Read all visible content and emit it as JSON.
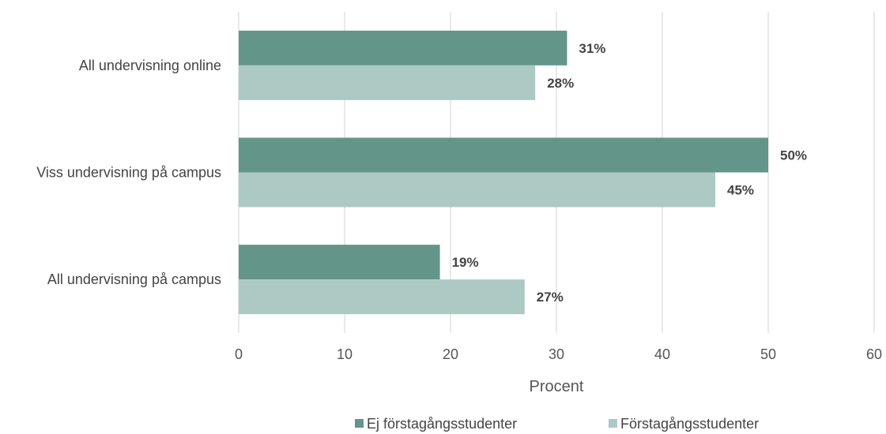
{
  "chart_data": {
    "type": "bar",
    "orientation": "horizontal",
    "categories": [
      "All undervisning online",
      "Viss undervisning på campus",
      "All undervisning på campus"
    ],
    "series": [
      {
        "name": "Ej förstagångsstudenter",
        "values": [
          31,
          50,
          19
        ],
        "labels": [
          "31%",
          "50%",
          "19%"
        ],
        "color": "#639589"
      },
      {
        "name": "Förstagångsstudenter",
        "values": [
          28,
          45,
          27
        ],
        "labels": [
          "28%",
          "45%",
          "27%"
        ],
        "color": "#adc9c4"
      }
    ],
    "xlabel": "Procent",
    "xlim": [
      0,
      60
    ],
    "xticks": [
      0,
      10,
      20,
      30,
      40,
      50,
      60
    ],
    "grid": true,
    "legend_position": "bottom"
  }
}
